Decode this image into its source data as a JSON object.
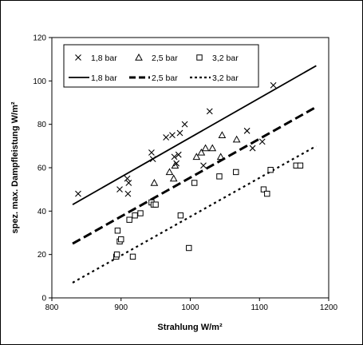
{
  "chart_data": {
    "type": "scatter",
    "title": "",
    "xlabel": "Strahlung W/m²",
    "ylabel": "spez. max. Dampfleistung W/m²",
    "xlim": [
      800,
      1200
    ],
    "ylim": [
      0,
      120
    ],
    "xticks": [
      800,
      900,
      1000,
      1100,
      1200
    ],
    "yticks": [
      0,
      20,
      40,
      60,
      80,
      100,
      120
    ],
    "grid": false,
    "legend_position": "top-left",
    "series": [
      {
        "name": "1,8 bar",
        "kind": "points",
        "marker": "x",
        "color": "#000000",
        "points": [
          [
            838,
            48
          ],
          [
            898,
            50
          ],
          [
            909,
            55
          ],
          [
            910,
            48
          ],
          [
            911,
            53
          ],
          [
            944,
            67
          ],
          [
            946,
            64
          ],
          [
            965,
            74
          ],
          [
            974,
            75
          ],
          [
            977,
            65
          ],
          [
            980,
            62
          ],
          [
            983,
            66
          ],
          [
            985,
            76
          ],
          [
            992,
            80
          ],
          [
            1019,
            61
          ],
          [
            1028,
            86
          ],
          [
            1082,
            77
          ],
          [
            1090,
            69
          ],
          [
            1104,
            72
          ],
          [
            1120,
            98
          ]
        ]
      },
      {
        "name": "2,5 bar",
        "kind": "points",
        "marker": "triangle",
        "color": "#000000",
        "points": [
          [
            948,
            53
          ],
          [
            970,
            58
          ],
          [
            976,
            55
          ],
          [
            978,
            61
          ],
          [
            1009,
            65
          ],
          [
            1016,
            67
          ],
          [
            1022,
            69
          ],
          [
            1032,
            69
          ],
          [
            1044,
            65
          ],
          [
            1046,
            75
          ],
          [
            1067,
            73
          ]
        ]
      },
      {
        "name": "3,2 bar",
        "kind": "points",
        "marker": "square",
        "color": "#000000",
        "points": [
          [
            893,
            19
          ],
          [
            894,
            20
          ],
          [
            895,
            31
          ],
          [
            898,
            26
          ],
          [
            900,
            27
          ],
          [
            912,
            36
          ],
          [
            917,
            19
          ],
          [
            920,
            38
          ],
          [
            928,
            39
          ],
          [
            944,
            44
          ],
          [
            947,
            43
          ],
          [
            950,
            43
          ],
          [
            986,
            38
          ],
          [
            998,
            23
          ],
          [
            1006,
            53
          ],
          [
            1042,
            56
          ],
          [
            1066,
            58
          ],
          [
            1106,
            50
          ],
          [
            1111,
            48
          ],
          [
            1116,
            59
          ],
          [
            1153,
            61
          ],
          [
            1159,
            61
          ]
        ]
      },
      {
        "name": "1,8 bar",
        "kind": "line",
        "dash": "solid",
        "color": "#000000",
        "x": [
          830,
          1182
        ],
        "y": [
          43,
          107
        ]
      },
      {
        "name": "2,5 bar",
        "kind": "line",
        "dash": "dashed",
        "color": "#000000",
        "x": [
          830,
          1182
        ],
        "y": [
          25,
          88
        ]
      },
      {
        "name": "3,2 bar",
        "kind": "line",
        "dash": "dotted",
        "color": "#000000",
        "x": [
          830,
          1182
        ],
        "y": [
          7,
          70
        ]
      }
    ]
  }
}
